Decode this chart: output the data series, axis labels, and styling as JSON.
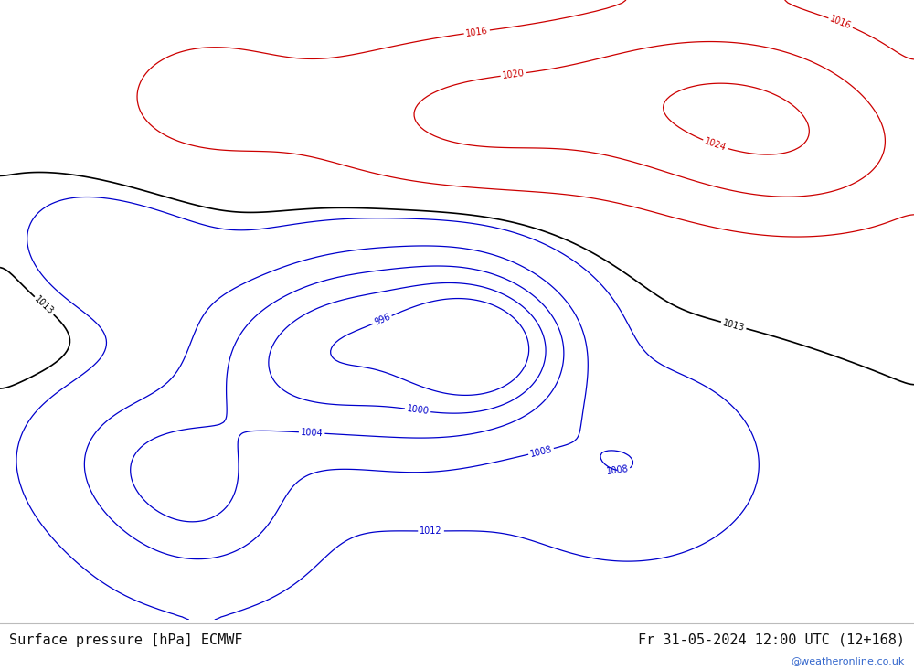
{
  "title_left": "Surface pressure [hPa] ECMWF",
  "title_right": "Fr 31-05-2024 12:00 UTC (12+168)",
  "watermark": "@weatheronline.co.uk",
  "fig_width": 10.0,
  "fig_height": 7.33,
  "lon_min": 20,
  "lon_max": 110,
  "lat_min": -2,
  "lat_max": 62,
  "land_color": "#c8f0a0",
  "sea_color": "#d8eef8",
  "high_land_color": "#d0d0d0",
  "border_color": "#aaaaaa",
  "coastline_color": "#888888",
  "blue_contour_color": "#0000cc",
  "black_contour_color": "#000000",
  "red_contour_color": "#cc0000",
  "label_fontsize": 7,
  "title_fontsize": 11,
  "background_color": "#ffffff",
  "blue_levels": [
    996,
    1000,
    1004,
    1008,
    1012
  ],
  "black_levels": [
    1013
  ],
  "red_levels": [
    1016,
    1020,
    1024
  ],
  "contour_linewidth": 0.9,
  "black_linewidth": 1.2
}
